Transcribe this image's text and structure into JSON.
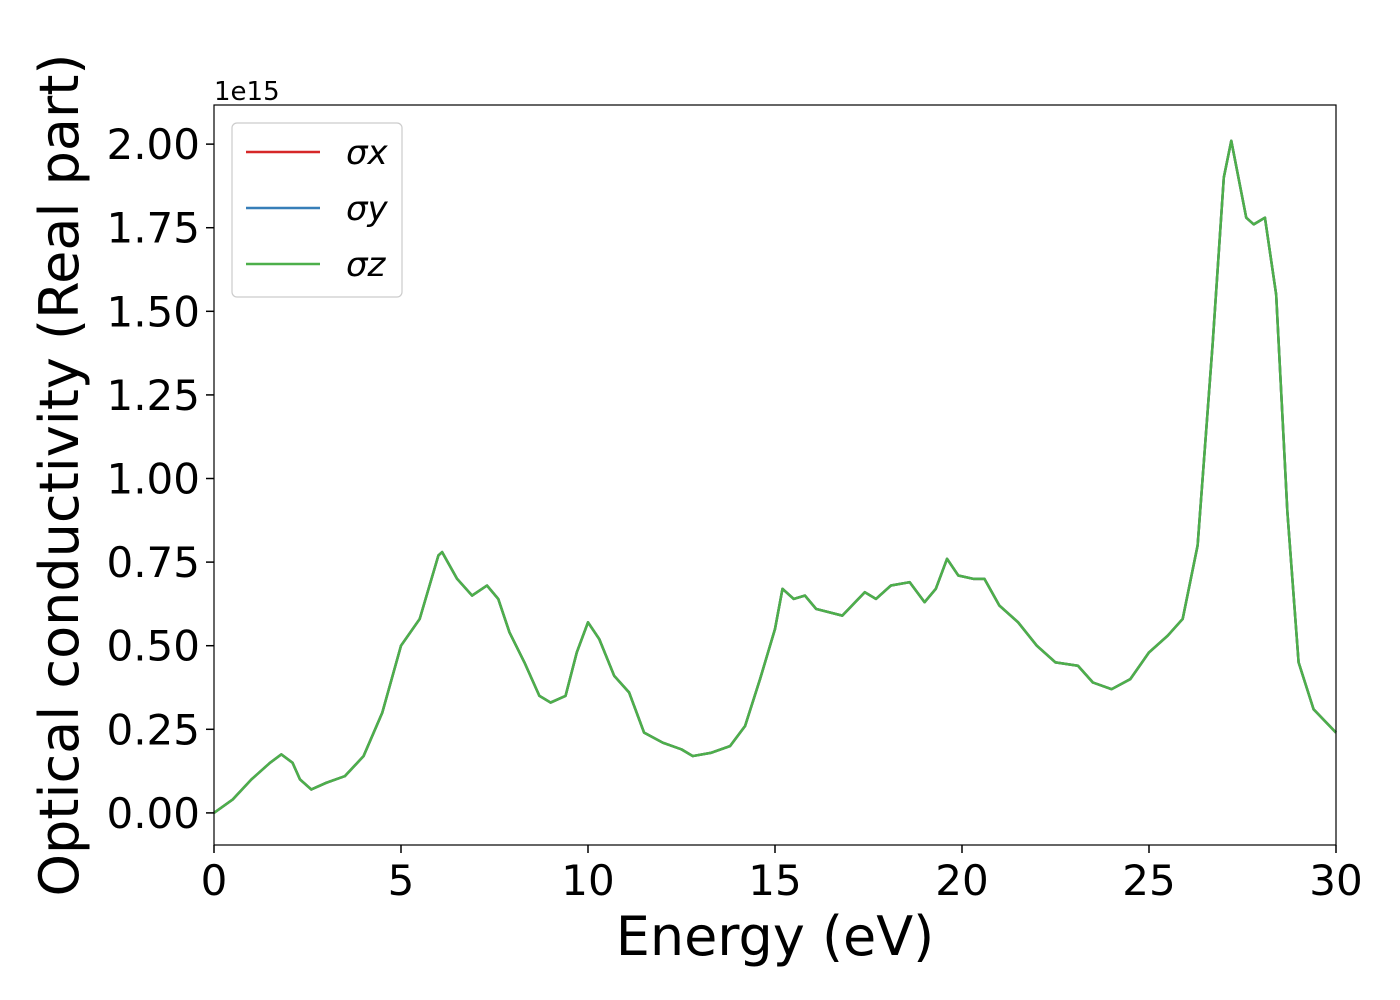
{
  "chart_data": {
    "type": "line",
    "x_label": "Energy (eV)",
    "y_label": "Optical conductivity (Real part)",
    "y_offset_label": "1e15",
    "x": [
      0,
      0.5,
      1.0,
      1.5,
      1.8,
      2.1,
      2.3,
      2.6,
      3.0,
      3.5,
      4.0,
      4.5,
      5.0,
      5.5,
      6.0,
      6.1,
      6.5,
      6.9,
      7.3,
      7.6,
      7.9,
      8.3,
      8.7,
      9.0,
      9.4,
      9.7,
      10.0,
      10.3,
      10.7,
      11.1,
      11.5,
      12.0,
      12.5,
      12.8,
      13.3,
      13.8,
      14.2,
      14.6,
      15.0,
      15.2,
      15.5,
      15.8,
      16.1,
      16.8,
      17.4,
      17.7,
      18.1,
      18.6,
      19.0,
      19.3,
      19.6,
      19.9,
      20.3,
      20.6,
      21.0,
      21.5,
      22.0,
      22.5,
      23.1,
      23.5,
      24.0,
      24.5,
      25.0,
      25.5,
      25.9,
      26.3,
      26.7,
      27.0,
      27.2,
      27.6,
      27.8,
      28.1,
      28.4,
      28.7,
      29.0,
      29.4,
      30.0
    ],
    "series": [
      {
        "name": "σx",
        "color": "#d62728",
        "values": [
          0,
          0.04,
          0.1,
          0.15,
          0.175,
          0.15,
          0.1,
          0.07,
          0.09,
          0.11,
          0.17,
          0.3,
          0.5,
          0.58,
          0.77,
          0.78,
          0.7,
          0.65,
          0.68,
          0.64,
          0.54,
          0.45,
          0.35,
          0.33,
          0.35,
          0.48,
          0.57,
          0.52,
          0.41,
          0.36,
          0.24,
          0.21,
          0.19,
          0.17,
          0.18,
          0.2,
          0.26,
          0.4,
          0.55,
          0.67,
          0.64,
          0.65,
          0.61,
          0.59,
          0.66,
          0.64,
          0.68,
          0.69,
          0.63,
          0.67,
          0.76,
          0.71,
          0.7,
          0.7,
          0.62,
          0.57,
          0.5,
          0.45,
          0.44,
          0.39,
          0.37,
          0.4,
          0.48,
          0.53,
          0.58,
          0.8,
          1.4,
          1.9,
          2.01,
          1.78,
          1.76,
          1.78,
          1.55,
          0.9,
          0.45,
          0.31,
          0.24
        ]
      },
      {
        "name": "σy",
        "color": "#377eb8",
        "values": [
          0,
          0.04,
          0.1,
          0.15,
          0.175,
          0.15,
          0.1,
          0.07,
          0.09,
          0.11,
          0.17,
          0.3,
          0.5,
          0.58,
          0.77,
          0.78,
          0.7,
          0.65,
          0.68,
          0.64,
          0.54,
          0.45,
          0.35,
          0.33,
          0.35,
          0.48,
          0.57,
          0.52,
          0.41,
          0.36,
          0.24,
          0.21,
          0.19,
          0.17,
          0.18,
          0.2,
          0.26,
          0.4,
          0.55,
          0.67,
          0.64,
          0.65,
          0.61,
          0.59,
          0.66,
          0.64,
          0.68,
          0.69,
          0.63,
          0.67,
          0.76,
          0.71,
          0.7,
          0.7,
          0.62,
          0.57,
          0.5,
          0.45,
          0.44,
          0.39,
          0.37,
          0.4,
          0.48,
          0.53,
          0.58,
          0.8,
          1.4,
          1.9,
          2.01,
          1.78,
          1.76,
          1.78,
          1.55,
          0.9,
          0.45,
          0.31,
          0.24
        ]
      },
      {
        "name": "σz",
        "color": "#4daf4a",
        "values": [
          0,
          0.04,
          0.1,
          0.15,
          0.175,
          0.15,
          0.1,
          0.07,
          0.09,
          0.11,
          0.17,
          0.3,
          0.5,
          0.58,
          0.77,
          0.78,
          0.7,
          0.65,
          0.68,
          0.64,
          0.54,
          0.45,
          0.35,
          0.33,
          0.35,
          0.48,
          0.57,
          0.52,
          0.41,
          0.36,
          0.24,
          0.21,
          0.19,
          0.17,
          0.18,
          0.2,
          0.26,
          0.4,
          0.55,
          0.67,
          0.64,
          0.65,
          0.61,
          0.59,
          0.66,
          0.64,
          0.68,
          0.69,
          0.63,
          0.67,
          0.76,
          0.71,
          0.7,
          0.7,
          0.62,
          0.57,
          0.5,
          0.45,
          0.44,
          0.39,
          0.37,
          0.4,
          0.48,
          0.53,
          0.58,
          0.8,
          1.4,
          1.9,
          2.01,
          1.78,
          1.76,
          1.78,
          1.55,
          0.9,
          0.45,
          0.31,
          0.24
        ]
      }
    ],
    "xlim": [
      0,
      30
    ],
    "xticks": [
      0,
      5,
      10,
      15,
      20,
      25,
      30
    ],
    "ylim": [
      -0.096,
      2.117
    ],
    "yticks": [
      {
        "value": 0,
        "label": "0.00"
      },
      {
        "value": 0.25,
        "label": "0.25"
      },
      {
        "value": 0.5,
        "label": "0.50"
      },
      {
        "value": 0.75,
        "label": "0.75"
      },
      {
        "value": 1,
        "label": "1.00"
      },
      {
        "value": 1.25,
        "label": "1.25"
      },
      {
        "value": 1.5,
        "label": "1.50"
      },
      {
        "value": 1.75,
        "label": "1.75"
      },
      {
        "value": 2,
        "label": "2.00"
      }
    ],
    "legend": "upper left",
    "grid": false
  }
}
